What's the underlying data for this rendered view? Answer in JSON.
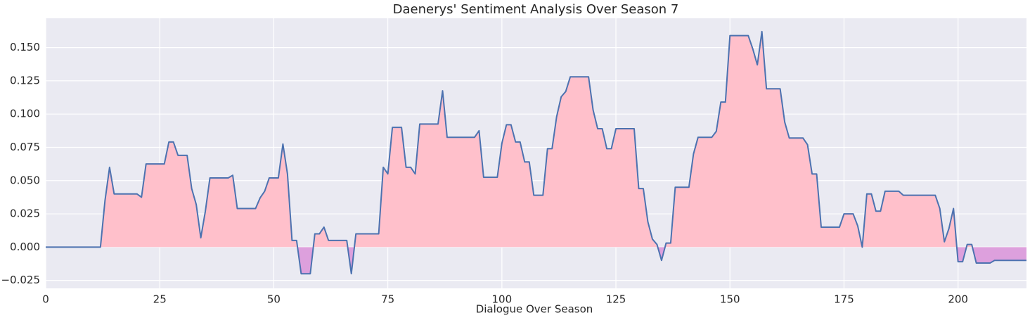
{
  "chart_data": {
    "type": "line",
    "title": "Daenerys' Sentiment Analysis Over Season 7",
    "xlabel": "Dialogue Over Season",
    "x": [
      0,
      1,
      2,
      3,
      4,
      5,
      6,
      7,
      8,
      9,
      10,
      11,
      12,
      13,
      14,
      15,
      16,
      17,
      18,
      19,
      20,
      21,
      22,
      23,
      24,
      25,
      26,
      27,
      28,
      29,
      30,
      31,
      32,
      33,
      34,
      35,
      36,
      37,
      38,
      39,
      40,
      41,
      42,
      43,
      44,
      45,
      46,
      47,
      48,
      49,
      50,
      51,
      52,
      53,
      54,
      55,
      56,
      57,
      58,
      59,
      60,
      61,
      62,
      63,
      64,
      65,
      66,
      67,
      68,
      69,
      70,
      71,
      72,
      73,
      74,
      75,
      76,
      77,
      78,
      79,
      80,
      81,
      82,
      83,
      84,
      85,
      86,
      87,
      88,
      89,
      90,
      91,
      92,
      93,
      94,
      95,
      96,
      97,
      98,
      99,
      100,
      101,
      102,
      103,
      104,
      105,
      106,
      107,
      108,
      109,
      110,
      111,
      112,
      113,
      114,
      115,
      116,
      117,
      118,
      119,
      120,
      121,
      122,
      123,
      124,
      125,
      126,
      127,
      128,
      129,
      130,
      131,
      132,
      133,
      134,
      135,
      136,
      137,
      138,
      139,
      140,
      141,
      142,
      143,
      144,
      145,
      146,
      147,
      148,
      149,
      150,
      151,
      152,
      153,
      154,
      155,
      156,
      157,
      158,
      159,
      160,
      161,
      162,
      163,
      164,
      165,
      166,
      167,
      168,
      169,
      170,
      171,
      172,
      173,
      174,
      175,
      176,
      177,
      178,
      179,
      180,
      181,
      182,
      183,
      184,
      185,
      186,
      187,
      188,
      189,
      190,
      191,
      192,
      193,
      194,
      195,
      196,
      197,
      198,
      199,
      200,
      201,
      202,
      203,
      204,
      205,
      206,
      207,
      208,
      209,
      210,
      211,
      212,
      213,
      214,
      215
    ],
    "series": [
      {
        "color": "#4c72b0",
        "fill_positive": "#ffc0cb",
        "fill_negative": "#dda0dd",
        "values": [
          0,
          0,
          0,
          0,
          0,
          0,
          0,
          0,
          0,
          0,
          0,
          0,
          0,
          0.035,
          0.06,
          0.04,
          0.04,
          0.04,
          0.04,
          0.04,
          0.04,
          0.0375,
          0.0625,
          0.0625,
          0.0625,
          0.0625,
          0.0625,
          0.079,
          0.079,
          0.069,
          0.069,
          0.069,
          0.044,
          0.032,
          0.007,
          0.027,
          0.052,
          0.052,
          0.052,
          0.052,
          0.052,
          0.054,
          0.029,
          0.029,
          0.029,
          0.029,
          0.029,
          0.037,
          0.042,
          0.052,
          0.052,
          0.052,
          0.0775,
          0.055,
          0.005,
          0.005,
          -0.02,
          -0.02,
          -0.02,
          0.01,
          0.01,
          0.015,
          0.005,
          0.005,
          0.005,
          0.005,
          0.005,
          -0.02,
          0.01,
          0.01,
          0.01,
          0.01,
          0.01,
          0.01,
          0.06,
          0.055,
          0.09,
          0.09,
          0.09,
          0.06,
          0.06,
          0.055,
          0.0925,
          0.0925,
          0.0925,
          0.0925,
          0.0925,
          0.1175,
          0.0825,
          0.0825,
          0.0825,
          0.0825,
          0.0825,
          0.0825,
          0.0825,
          0.0875,
          0.0525,
          0.0525,
          0.0525,
          0.0525,
          0.078,
          0.092,
          0.092,
          0.079,
          0.079,
          0.064,
          0.064,
          0.039,
          0.039,
          0.039,
          0.074,
          0.074,
          0.098,
          0.113,
          0.117,
          0.128,
          0.128,
          0.128,
          0.128,
          0.128,
          0.103,
          0.089,
          0.089,
          0.074,
          0.074,
          0.089,
          0.089,
          0.089,
          0.089,
          0.089,
          0.044,
          0.044,
          0.019,
          0.006,
          0.002,
          -0.01,
          0.003,
          0.003,
          0.045,
          0.045,
          0.045,
          0.045,
          0.07,
          0.0825,
          0.0825,
          0.0825,
          0.0825,
          0.087,
          0.109,
          0.109,
          0.159,
          0.159,
          0.159,
          0.159,
          0.159,
          0.149,
          0.137,
          0.162,
          0.119,
          0.119,
          0.119,
          0.119,
          0.094,
          0.082,
          0.082,
          0.082,
          0.082,
          0.077,
          0.055,
          0.055,
          0.015,
          0.015,
          0.015,
          0.015,
          0.015,
          0.025,
          0.025,
          0.025,
          0.016,
          0,
          0.04,
          0.04,
          0.027,
          0.027,
          0.042,
          0.042,
          0.042,
          0.042,
          0.039,
          0.039,
          0.039,
          0.039,
          0.039,
          0.039,
          0.039,
          0.039,
          0.029,
          0.004,
          0.014,
          0.029,
          -0.011,
          -0.011,
          0.002,
          0.002,
          -0.012,
          -0.012,
          -0.012,
          -0.012,
          -0.01,
          -0.01,
          -0.01,
          -0.01,
          -0.01,
          -0.01,
          -0.01,
          -0.01
        ]
      }
    ],
    "xlim": [
      0,
      215
    ],
    "xticks": [
      0,
      25,
      50,
      75,
      100,
      125,
      150,
      175,
      200
    ],
    "ylim": [
      -0.031,
      0.172
    ],
    "yticks": [
      {
        "value": -0.025,
        "label": "−0.025"
      },
      {
        "value": 0,
        "label": "0.000"
      },
      {
        "value": 0.025,
        "label": "0.025"
      },
      {
        "value": 0.05,
        "label": "0.050"
      },
      {
        "value": 0.075,
        "label": "0.075"
      },
      {
        "value": 0.1,
        "label": "0.100"
      },
      {
        "value": 0.125,
        "label": "0.125"
      },
      {
        "value": 0.15,
        "label": "0.150"
      }
    ],
    "grid": true,
    "background": "#eaeaf2"
  }
}
